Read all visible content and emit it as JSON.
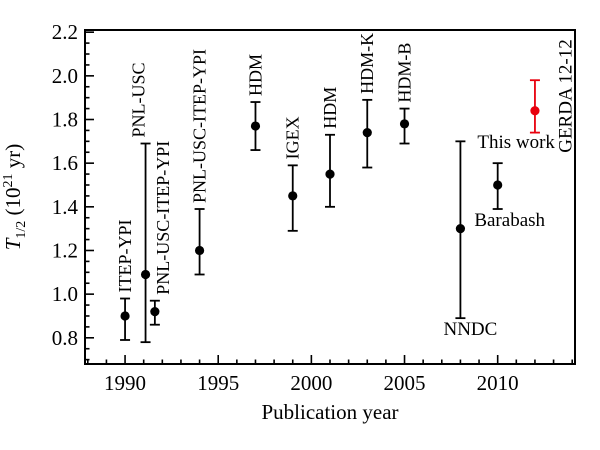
{
  "figure": {
    "background": "#ffffff",
    "axis_color": "#000000",
    "accent_red": "#e8000d"
  },
  "chart_data": {
    "type": "scatter",
    "title": "",
    "xlabel": "Publication year",
    "ylabel": "T_1/2 (10^21 yr)",
    "ylabel_parts": {
      "t": "T",
      "sub": "1/2",
      "mid": " (10",
      "sup": "21",
      "post": " yr)"
    },
    "xlim": [
      1987.85,
      2014.15
    ],
    "ylim": [
      0.68,
      2.21
    ],
    "x_major_ticks": [
      1990,
      1995,
      2000,
      2005,
      2010
    ],
    "x_minor_step": 1,
    "y_major_ticks": [
      0.8,
      1.0,
      1.2,
      1.4,
      1.6,
      1.8,
      2.0,
      2.2
    ],
    "y_minor_step": 0.05,
    "grid": false,
    "legend": "none",
    "points": [
      {
        "label": "ITEP-YPI",
        "year": 1990,
        "y": 0.9,
        "y_lo": 0.79,
        "y_hi": 0.98,
        "color": "#000000",
        "placement": "above-rotated"
      },
      {
        "label": "PNL-USC",
        "year": 1991.1,
        "y": 1.09,
        "y_lo": 0.78,
        "y_hi": 1.69,
        "color": "#000000",
        "placement": "above-rotated",
        "label_dx": -7
      },
      {
        "label": "PNL-USC-ITEP-YPI",
        "year": 1991.6,
        "y": 0.92,
        "y_lo": 0.86,
        "y_hi": 0.97,
        "color": "#000000",
        "placement": "above-rotated",
        "label_dx": 8
      },
      {
        "label": "PNL-USC-ITEP-YPI",
        "year": 1994,
        "y": 1.2,
        "y_lo": 1.09,
        "y_hi": 1.39,
        "color": "#000000",
        "placement": "above-rotated"
      },
      {
        "label": "HDM",
        "year": 1997,
        "y": 1.77,
        "y_lo": 1.66,
        "y_hi": 1.88,
        "color": "#000000",
        "placement": "above-rotated"
      },
      {
        "label": "IGEX",
        "year": 1999,
        "y": 1.45,
        "y_lo": 1.29,
        "y_hi": 1.59,
        "color": "#000000",
        "placement": "above-rotated"
      },
      {
        "label": "HDM",
        "year": 2001,
        "y": 1.55,
        "y_lo": 1.4,
        "y_hi": 1.73,
        "color": "#000000",
        "placement": "above-rotated"
      },
      {
        "label": "HDM-K",
        "year": 2003,
        "y": 1.74,
        "y_lo": 1.58,
        "y_hi": 1.89,
        "color": "#000000",
        "placement": "above-rotated"
      },
      {
        "label": "HDM-B",
        "year": 2005,
        "y": 1.78,
        "y_lo": 1.69,
        "y_hi": 1.85,
        "color": "#000000",
        "placement": "above-rotated"
      },
      {
        "label": "NNDC",
        "year": 2008,
        "y": 1.3,
        "y_lo": 0.89,
        "y_hi": 1.7,
        "color": "#000000",
        "placement": "below",
        "label_dx": 10
      },
      {
        "label": "Barabash",
        "year": 2010,
        "y": 1.5,
        "y_lo": 1.39,
        "y_hi": 1.6,
        "color": "#000000",
        "placement": "below",
        "label_dx": 12
      },
      {
        "label": "GERDA 12-12",
        "year": 2012,
        "y": 1.84,
        "y_lo": 1.74,
        "y_hi": 1.98,
        "color": "#e8000d",
        "placement": "right-rotated",
        "annotation": "This work"
      }
    ]
  }
}
